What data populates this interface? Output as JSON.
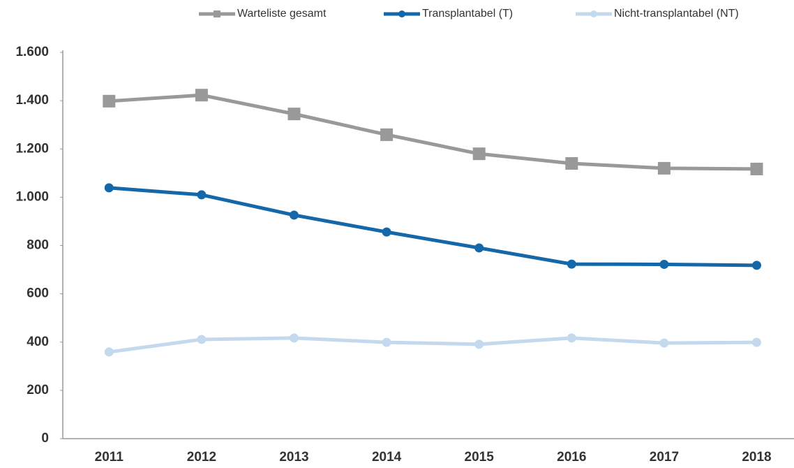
{
  "chart_data": {
    "type": "line",
    "categories": [
      "2011",
      "2012",
      "2013",
      "2014",
      "2015",
      "2016",
      "2017",
      "2018"
    ],
    "series": [
      {
        "name": "Warteliste gesamt",
        "color": "#999999",
        "marker": "square",
        "values": [
          1398,
          1423,
          1345,
          1259,
          1180,
          1140,
          1120,
          1117
        ]
      },
      {
        "name": "Transplantabel (T)",
        "color": "#1467a8",
        "marker": "circle",
        "values": [
          1039,
          1010,
          926,
          856,
          790,
          723,
          722,
          718
        ]
      },
      {
        "name": "Nicht-transplantabel (NT)",
        "color": "#c5d9ee",
        "marker": "circle",
        "values": [
          359,
          411,
          417,
          399,
          391,
          417,
          396,
          399
        ]
      }
    ],
    "ylim": [
      0,
      1600
    ],
    "yticks": [
      0,
      200,
      400,
      600,
      800,
      {
        "value": 1000,
        "label": "1.000"
      },
      {
        "value": 1200,
        "label": "1.200"
      },
      {
        "value": 1400,
        "label": "1.400"
      },
      {
        "value": 1600,
        "label": "1.600"
      }
    ],
    "grid": false,
    "legend": "top"
  }
}
